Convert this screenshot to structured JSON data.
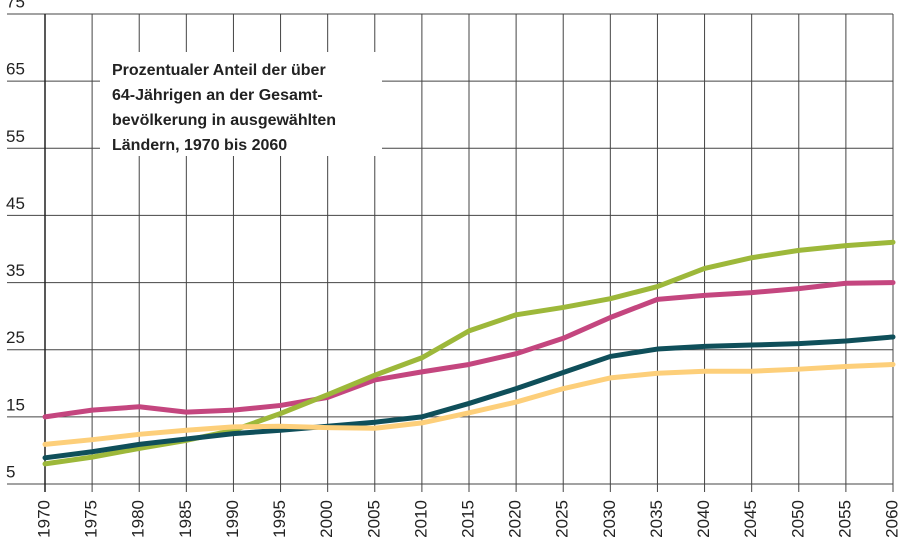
{
  "chart_data": {
    "type": "line",
    "title": [
      "Prozentualer Anteil der über",
      "64-Jährigen an der Gesamt-",
      "bevölkerung in ausgewählten",
      "Ländern, 1970 bis 2060"
    ],
    "x": [
      1970,
      1975,
      1980,
      1985,
      1990,
      1995,
      2000,
      2005,
      2010,
      2015,
      2020,
      2025,
      2030,
      2035,
      2040,
      2045,
      2050,
      2055,
      2060
    ],
    "xlim": [
      1970,
      2060
    ],
    "xticks": [
      1970,
      1975,
      1980,
      1985,
      1990,
      1995,
      2000,
      2005,
      2010,
      2015,
      2020,
      2025,
      2030,
      2035,
      2040,
      2045,
      2050,
      2055,
      2060
    ],
    "ylim": [
      5,
      75
    ],
    "yticks": [
      5,
      15,
      25,
      35,
      45,
      55,
      65,
      75
    ],
    "grid": true,
    "series": [
      {
        "color": "#c4467f",
        "values": [
          15.0,
          16.0,
          16.5,
          15.7,
          16.0,
          16.7,
          17.9,
          20.5,
          21.7,
          22.8,
          24.4,
          26.7,
          29.8,
          32.5,
          33.1,
          33.5,
          34.1,
          34.9,
          35.0
        ]
      },
      {
        "color": "#9db83a",
        "values": [
          8.0,
          9.0,
          10.3,
          11.5,
          13.0,
          15.5,
          18.3,
          21.2,
          23.8,
          27.8,
          30.2,
          31.3,
          32.6,
          34.4,
          37.1,
          38.7,
          39.8,
          40.5,
          41.0
        ]
      },
      {
        "color": "#0f4f5a",
        "values": [
          8.9,
          9.8,
          10.9,
          11.7,
          12.5,
          13.0,
          13.6,
          14.2,
          15.0,
          17.0,
          19.2,
          21.6,
          24.0,
          25.1,
          25.5,
          25.7,
          25.9,
          26.3,
          26.9
        ]
      },
      {
        "color": "#fdcf7a",
        "values": [
          10.9,
          11.6,
          12.4,
          13.0,
          13.5,
          13.6,
          13.4,
          13.3,
          14.1,
          15.6,
          17.2,
          19.2,
          20.8,
          21.5,
          21.8,
          21.8,
          22.1,
          22.5,
          22.8
        ]
      }
    ]
  }
}
